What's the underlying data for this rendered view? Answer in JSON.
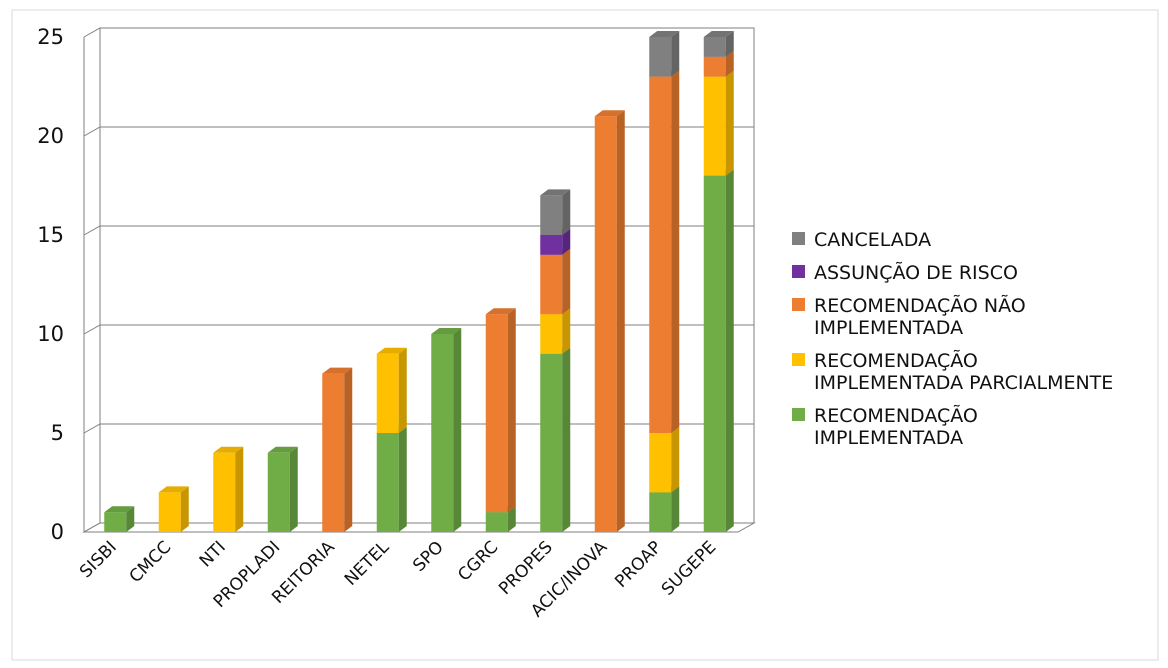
{
  "chart_data": {
    "type": "bar",
    "stacked": true,
    "three_d": true,
    "title": "",
    "xlabel": "",
    "ylabel": "",
    "ylim": [
      0,
      25
    ],
    "yticks": [
      "0",
      "5",
      "10",
      "15",
      "20",
      "25"
    ],
    "grid": true,
    "legend_position": "right",
    "categories": [
      "SISBI",
      "CMCC",
      "NTI",
      "PROPLADI",
      "REITORIA",
      "NETEL",
      "SPO",
      "CGRC",
      "PROPES",
      "ACIC/INOVA",
      "PROAP",
      "SUGEPE"
    ],
    "series": [
      {
        "name": "RECOMENDAÇÃO IMPLEMENTADA",
        "legend_lines": [
          "RECOMENDAÇÃO",
          "IMPLEMENTADA"
        ],
        "color": "#70ad47",
        "values": [
          1,
          0,
          0,
          4,
          0,
          5,
          10,
          1,
          9,
          0,
          2,
          18
        ]
      },
      {
        "name": "RECOMENDAÇÃO IMPLEMENTADA PARCIALMENTE",
        "legend_lines": [
          "RECOMENDAÇÃO",
          "IMPLEMENTADA PARCIALMENTE"
        ],
        "color": "#ffc000",
        "values": [
          0,
          2,
          4,
          0,
          0,
          4,
          0,
          0,
          2,
          0,
          3,
          5
        ]
      },
      {
        "name": "RECOMENDAÇÃO NÃO IMPLEMENTADA",
        "legend_lines": [
          "RECOMENDAÇÃO NÃO",
          "IMPLEMENTADA"
        ],
        "color": "#ed7d31",
        "values": [
          0,
          0,
          0,
          0,
          8,
          0,
          0,
          10,
          3,
          21,
          18,
          1
        ]
      },
      {
        "name": "ASSUNÇÃO DE RISCO",
        "legend_lines": [
          "ASSUNÇÃO DE RISCO"
        ],
        "color": "#7030a0",
        "values": [
          0,
          0,
          0,
          0,
          0,
          0,
          0,
          0,
          1,
          0,
          0,
          0
        ]
      },
      {
        "name": "CANCELADA",
        "legend_lines": [
          "CANCELADA"
        ],
        "color": "#808080",
        "values": [
          0,
          0,
          0,
          0,
          0,
          0,
          0,
          0,
          2,
          0,
          2,
          1
        ]
      }
    ]
  }
}
